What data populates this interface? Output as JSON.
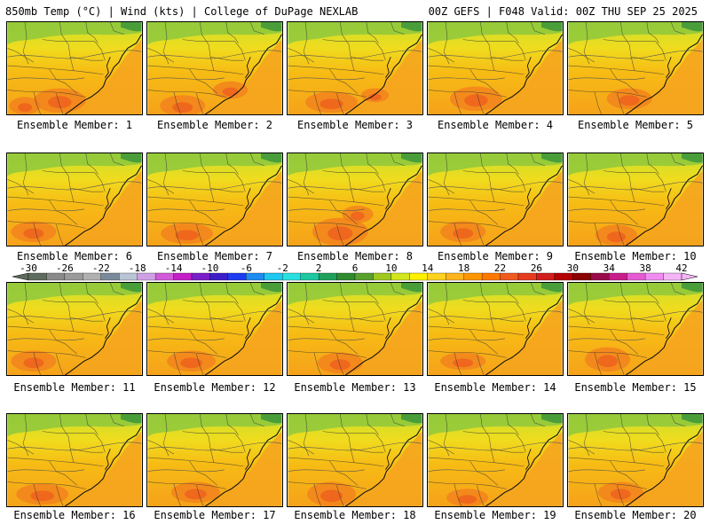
{
  "header": {
    "left": "850mb Temp (°C) | Wind (kts) | College of DuPage NEXLAB",
    "right": "00Z GEFS | F048 Valid: 00Z THU SEP 25 2025"
  },
  "panels": [
    {
      "label": "Ensemble Member: 1"
    },
    {
      "label": "Ensemble Member: 2"
    },
    {
      "label": "Ensemble Member: 3"
    },
    {
      "label": "Ensemble Member: 4"
    },
    {
      "label": "Ensemble Member: 5"
    },
    {
      "label": "Ensemble Member: 6"
    },
    {
      "label": "Ensemble Member: 7"
    },
    {
      "label": "Ensemble Member: 8"
    },
    {
      "label": "Ensemble Member: 9"
    },
    {
      "label": "Ensemble Member: 10"
    },
    {
      "label": "Ensemble Member: 11"
    },
    {
      "label": "Ensemble Member: 12"
    },
    {
      "label": "Ensemble Member: 13"
    },
    {
      "label": "Ensemble Member: 14"
    },
    {
      "label": "Ensemble Member: 15"
    },
    {
      "label": "Ensemble Member: 16"
    },
    {
      "label": "Ensemble Member: 17"
    },
    {
      "label": "Ensemble Member: 18"
    },
    {
      "label": "Ensemble Member: 19"
    },
    {
      "label": "Ensemble Member: 20"
    }
  ],
  "colorbar": {
    "labels": [
      "-30",
      "-26",
      "-22",
      "-18",
      "-14",
      "-10",
      "-6",
      "-2",
      "2",
      "6",
      "10",
      "14",
      "18",
      "22",
      "26",
      "30",
      "34",
      "38",
      "42"
    ],
    "colors": [
      "#5e6b5e",
      "#8a8a8a",
      "#9a9a9a",
      "#b0b0b0",
      "#7a8a9a",
      "#b9c4d6",
      "#cfa0e6",
      "#d25ad8",
      "#c41ec8",
      "#7a1ec8",
      "#3c1ec8",
      "#1e3cf0",
      "#1e8cf0",
      "#1ec8f0",
      "#28e0e0",
      "#1ec8a0",
      "#1ea05a",
      "#2e8b2e",
      "#5aa02e",
      "#a0c81e",
      "#d2e61e",
      "#fff000",
      "#ffd21e",
      "#ffb41e",
      "#ff9600",
      "#ff7800",
      "#f05a1e",
      "#e63c1e",
      "#d21e1e",
      "#b40000",
      "#8c0000",
      "#9a0a4a",
      "#c81e8c",
      "#e65ad2",
      "#f08cf0",
      "#f5b4f5"
    ],
    "fields": {
      "cool": "#8ec83c",
      "mild": "#c9df2c",
      "warm1": "#f0dc1e",
      "warm2": "#f7bb14",
      "warm3": "#f6a21a",
      "hot": "#f27d1e",
      "hotter": "#ec5a1e",
      "green": "#4a9e3a",
      "ocean": "#f5a51e"
    }
  }
}
